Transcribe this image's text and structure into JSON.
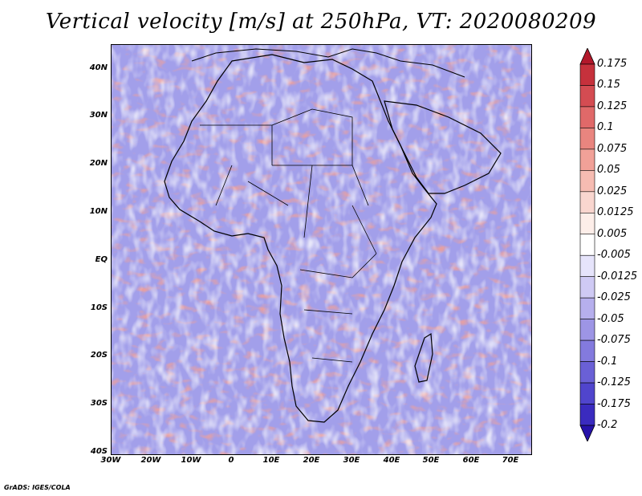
{
  "title": "Vertical velocity [m/s] at 250hPa, VT: 2020080209",
  "footer": "GrADS: IGES/COLA",
  "y_labels": [
    "40N",
    "30N",
    "20N",
    "10N",
    "EQ",
    "10S",
    "20S",
    "30S",
    "40S"
  ],
  "x_labels": [
    "30W",
    "20W",
    "10W",
    "0",
    "10E",
    "20E",
    "30E",
    "40E",
    "50E",
    "60E",
    "70E"
  ],
  "colorbar": {
    "levels": [
      "0.175",
      "0.15",
      "0.125",
      "0.1",
      "0.075",
      "0.05",
      "0.025",
      "0.0125",
      "0.005",
      "-0.005",
      "-0.0125",
      "-0.025",
      "-0.05",
      "-0.075",
      "-0.1",
      "-0.125",
      "-0.175",
      "-0.2"
    ],
    "colors": [
      "#b2182b",
      "#c6313c",
      "#d44c52",
      "#e06969",
      "#e9857f",
      "#f1a198",
      "#f6bcb2",
      "#f9d6cf",
      "#fdeee9",
      "#ffffff",
      "#e6e4fb",
      "#cfcaf4",
      "#b6afed",
      "#9d95e5",
      "#837ade",
      "#6a60d6",
      "#5045cd",
      "#3a2bbf",
      "#2612aa"
    ]
  },
  "map_colors": {
    "positive": "#e07a6c",
    "negative": "#7f7ee3",
    "background": "#b9b6f0"
  }
}
